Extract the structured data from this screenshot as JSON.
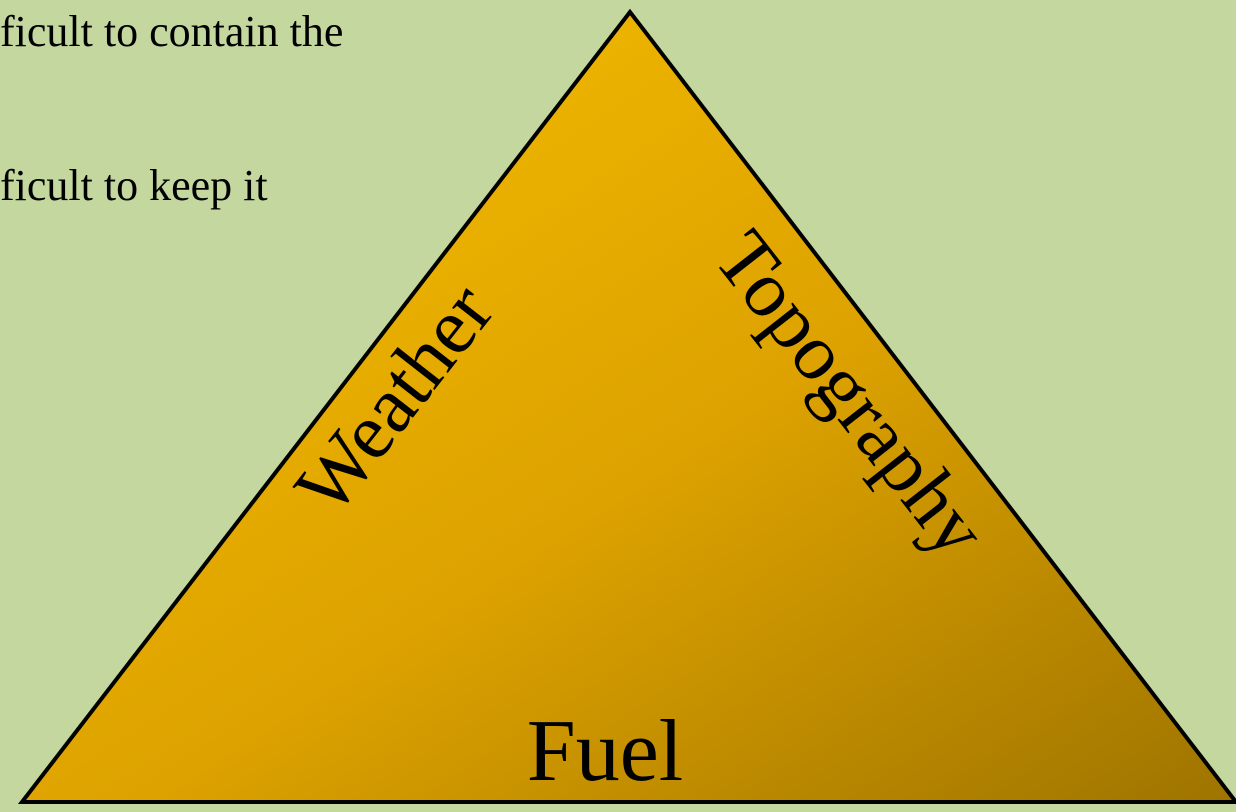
{
  "text_lines": [
    "ficult to contain the",
    "ficult to keep it"
  ],
  "triangle": {
    "left": "Weather",
    "right": "Topography",
    "bottom": "Fuel"
  }
}
